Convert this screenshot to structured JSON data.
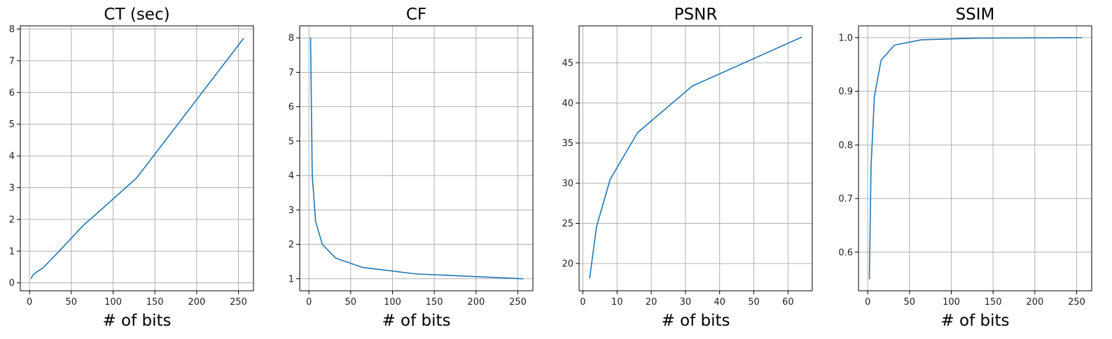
{
  "chart_data": [
    {
      "type": "line",
      "title": "CT (sec)",
      "xlabel": "# of bits",
      "ylabel": "",
      "grid": true,
      "xlim": [
        -11,
        268
      ],
      "ylim": [
        -0.25,
        8.1
      ],
      "xticks": [
        0,
        50,
        100,
        150,
        200,
        250
      ],
      "yticks": [
        0,
        1,
        2,
        3,
        4,
        5,
        6,
        7,
        8
      ],
      "series": [
        {
          "color": "#1f77b4",
          "x": [
            2,
            4,
            8,
            16,
            32,
            64,
            128,
            256
          ],
          "y": [
            0.14,
            0.24,
            0.33,
            0.47,
            0.9,
            1.8,
            3.3,
            7.7
          ]
        }
      ]
    },
    {
      "type": "line",
      "title": "CF",
      "xlabel": "# of bits",
      "ylabel": "",
      "grid": true,
      "xlim": [
        -11,
        268
      ],
      "ylim": [
        0.65,
        8.35
      ],
      "xticks": [
        0,
        50,
        100,
        150,
        200,
        250
      ],
      "yticks": [
        1,
        2,
        3,
        4,
        5,
        6,
        7,
        8
      ],
      "series": [
        {
          "color": "#1f77b4",
          "x": [
            2,
            4,
            8,
            16,
            32,
            64,
            128,
            256
          ],
          "y": [
            8.0,
            4.0,
            2.67,
            2.0,
            1.6,
            1.33,
            1.14,
            1.0
          ]
        }
      ]
    },
    {
      "type": "line",
      "title": "PSNR",
      "xlabel": "# of bits",
      "ylabel": "",
      "grid": true,
      "xlim": [
        -1.1,
        67.1
      ],
      "ylim": [
        16.6,
        49.6
      ],
      "xticks": [
        0,
        10,
        20,
        30,
        40,
        50,
        60
      ],
      "yticks": [
        20,
        25,
        30,
        35,
        40,
        45
      ],
      "series": [
        {
          "color": "#1f77b4",
          "x": [
            2,
            4,
            8,
            16,
            32,
            64
          ],
          "y": [
            18.2,
            24.6,
            30.5,
            36.3,
            42.1,
            48.2
          ]
        }
      ]
    },
    {
      "type": "line",
      "title": "SSIM",
      "xlabel": "# of bits",
      "ylabel": "",
      "grid": true,
      "xlim": [
        -11,
        268
      ],
      "ylim": [
        0.528,
        1.022
      ],
      "xticks": [
        0,
        50,
        100,
        150,
        200,
        250
      ],
      "yticks": [
        0.6,
        0.7,
        0.8,
        0.9,
        1.0
      ],
      "series": [
        {
          "color": "#1f77b4",
          "x": [
            2,
            4,
            8,
            16,
            32,
            64,
            128,
            256
          ],
          "y": [
            0.55,
            0.76,
            0.89,
            0.958,
            0.986,
            0.996,
            0.999,
            1.0
          ]
        }
      ]
    }
  ]
}
